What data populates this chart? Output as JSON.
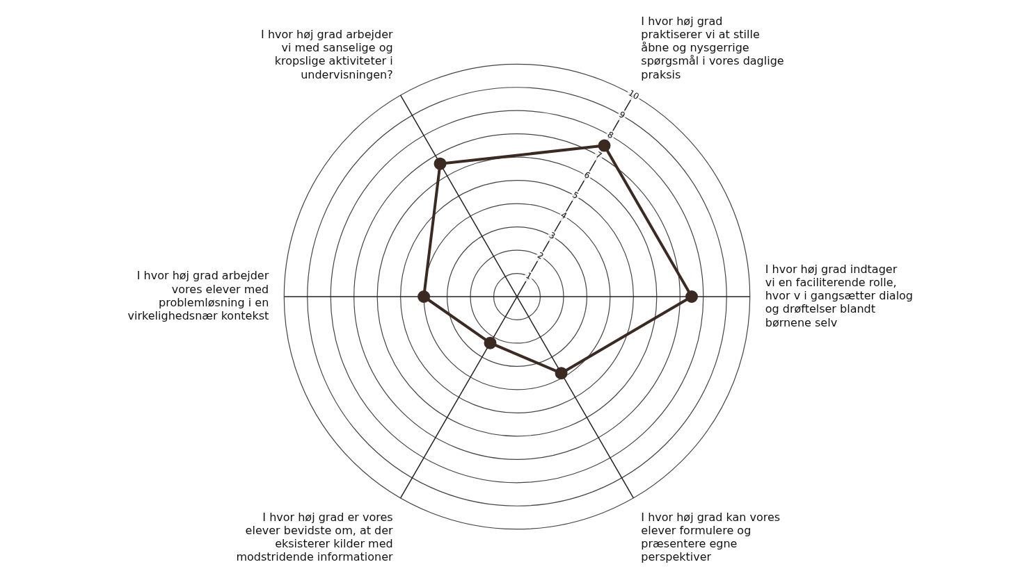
{
  "chart_data": {
    "type": "radar",
    "categories": [
      "I hvor høj grad praktiserer vi at stille åbne og nysgerrige spørgsmål i vores daglige praksis",
      "I hvor høj grad indtager vi en faciliterende rolle, hvor v i gangsætter dialog og drøftelser blandt børnene selv",
      "I hvor høj grad kan vores elever formulere og præsentere egne perspektiver",
      "I hvor høj grad er vores elever bevidste om, at der eksisterer kilder med modstridende informationer",
      "I hvor høj grad arbejder vores elever med problemløsning i en virkelighedsnær kontekst",
      "I hvor høj grad arbejder vi med sanselige og kropslige aktiviteter i undervisningen?"
    ],
    "series": [
      {
        "color": "#3b2a22",
        "values": [
          7.5,
          7.5,
          3.8,
          2.3,
          4,
          6.6
        ]
      }
    ],
    "ylim": [
      0,
      10
    ],
    "yticks": [
      1,
      2,
      3,
      4,
      5,
      6,
      7,
      8,
      9,
      10
    ],
    "grid": true,
    "marker": "circle",
    "legend": false
  }
}
